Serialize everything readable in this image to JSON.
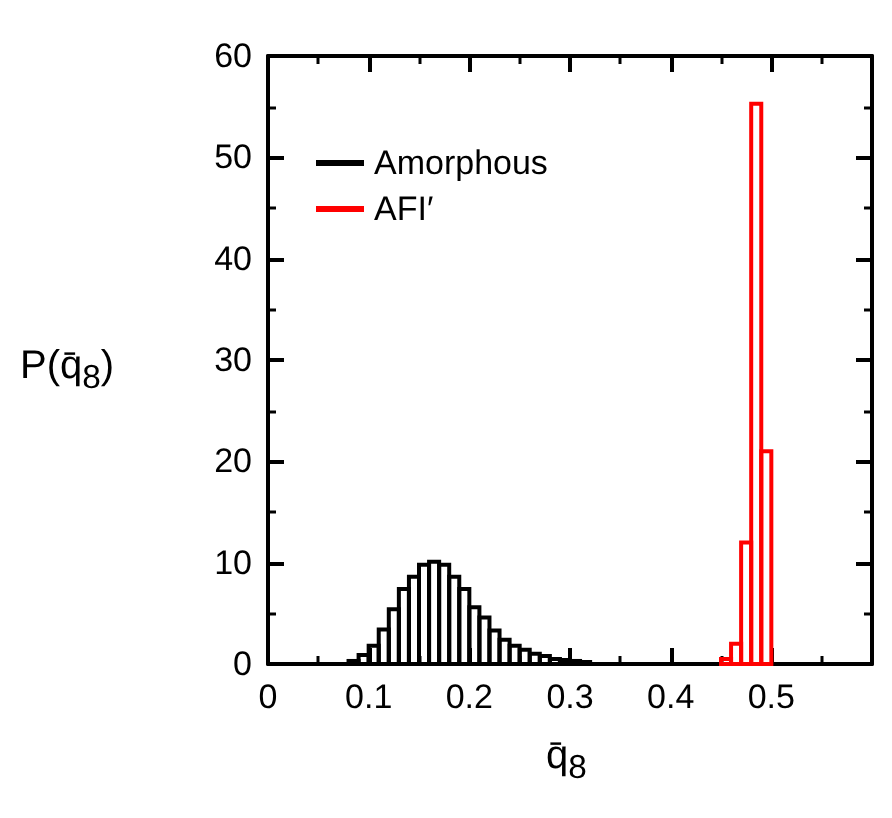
{
  "chart_data": {
    "type": "histogram",
    "xlabel": "q̄$_{8}$",
    "ylabel": "P(q̄$_{8}$)",
    "xlim": [
      0,
      0.6
    ],
    "xticks": [
      0,
      0.1,
      0.2,
      0.3,
      0.4,
      0.5
    ],
    "ylim": [
      0,
      60
    ],
    "yticks": [
      0,
      10,
      20,
      30,
      40,
      50,
      60
    ],
    "legend": "top left",
    "grid": false,
    "bins": [
      0.08,
      0.09,
      0.1,
      0.11,
      0.12,
      0.13,
      0.14,
      0.15,
      0.16,
      0.17,
      0.18,
      0.19,
      0.2,
      0.21,
      0.22,
      0.23,
      0.24,
      0.25,
      0.26,
      0.27,
      0.28,
      0.29,
      0.3,
      0.31,
      0.32,
      0.33,
      0.34,
      0.35,
      0.36,
      0.37,
      0.38,
      0.39,
      0.4,
      0.41,
      0.42,
      0.43,
      0.44,
      0.45,
      0.46,
      0.47,
      0.48,
      0.49,
      0.5
    ],
    "series": [
      {
        "name": "Amorphous",
        "color": "#000000",
        "values": [
          0.3,
          0.9,
          1.8,
          3.4,
          5.4,
          7.4,
          8.6,
          9.8,
          10.1,
          9.8,
          8.6,
          7.4,
          5.6,
          4.6,
          3.3,
          2.4,
          1.8,
          1.4,
          1.0,
          0.8,
          0.5,
          0.4,
          0.3,
          0.2,
          null,
          null,
          null,
          null,
          null,
          null,
          null,
          null,
          null,
          null,
          null,
          null,
          null,
          null,
          null,
          null,
          null,
          null
        ]
      },
      {
        "name": "AFI′",
        "color": "#ff0000",
        "values": [
          null,
          null,
          null,
          null,
          null,
          null,
          null,
          null,
          null,
          null,
          null,
          null,
          null,
          null,
          null,
          null,
          null,
          null,
          null,
          null,
          null,
          null,
          null,
          null,
          null,
          null,
          null,
          null,
          null,
          null,
          null,
          null,
          null,
          null,
          null,
          null,
          null,
          0.5,
          2,
          12,
          55.3,
          21
        ]
      }
    ]
  }
}
